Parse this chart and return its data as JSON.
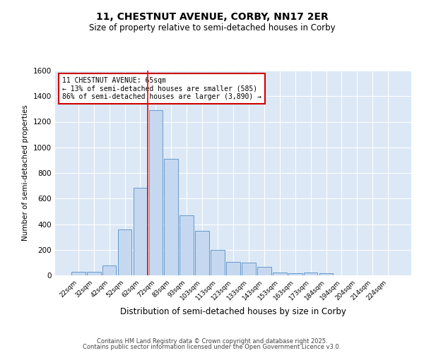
{
  "title_line1": "11, CHESTNUT AVENUE, CORBY, NN17 2ER",
  "title_line2": "Size of property relative to semi-detached houses in Corby",
  "xlabel": "Distribution of semi-detached houses by size in Corby",
  "ylabel": "Number of semi-detached properties",
  "categories": [
    "22sqm",
    "32sqm",
    "42sqm",
    "52sqm",
    "62sqm",
    "72sqm",
    "83sqm",
    "93sqm",
    "103sqm",
    "113sqm",
    "123sqm",
    "133sqm",
    "143sqm",
    "153sqm",
    "163sqm",
    "173sqm",
    "184sqm",
    "194sqm",
    "204sqm",
    "214sqm",
    "224sqm"
  ],
  "values": [
    25,
    30,
    80,
    360,
    685,
    1290,
    910,
    470,
    350,
    200,
    105,
    100,
    65,
    20,
    15,
    20,
    15,
    0,
    0,
    0,
    0
  ],
  "bar_color": "#c5d8f0",
  "bar_edge_color": "#6699cc",
  "red_line_x": 4.5,
  "annotation_title": "11 CHESTNUT AVENUE: 65sqm",
  "annotation_line2": "← 13% of semi-detached houses are smaller (585)",
  "annotation_line3": "86% of semi-detached houses are larger (3,890) →",
  "annotation_box_color": "#ffffff",
  "annotation_box_edge": "#cc0000",
  "ylim": [
    0,
    1600
  ],
  "yticks": [
    0,
    200,
    400,
    600,
    800,
    1000,
    1200,
    1400,
    1600
  ],
  "bg_color": "#dce8f5",
  "fig_bg_color": "#ffffff",
  "footer_line1": "Contains HM Land Registry data © Crown copyright and database right 2025.",
  "footer_line2": "Contains public sector information licensed under the Open Government Licence v3.0."
}
